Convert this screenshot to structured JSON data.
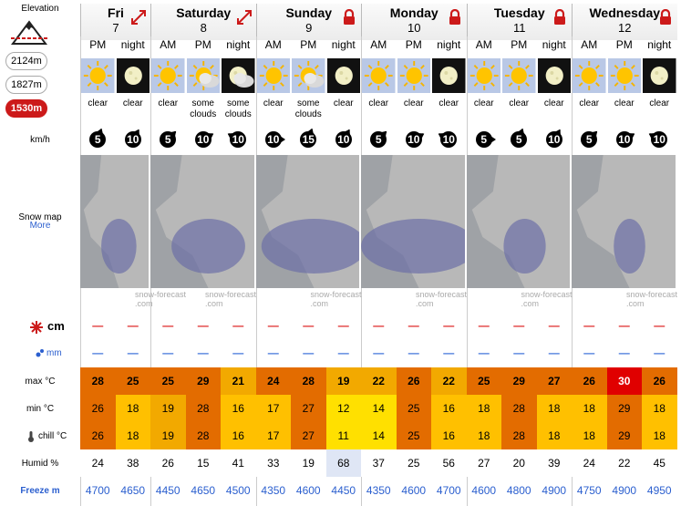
{
  "elevation": {
    "label": "Elevation",
    "options": [
      "2124m",
      "1827m",
      "1530m"
    ],
    "selected": "1530m"
  },
  "labels": {
    "wind_unit": "km/h",
    "snow_map": "Snow map",
    "more": "More",
    "snow_cm": "cm",
    "rain_mm": "mm",
    "max": "max °C",
    "min": "min °C",
    "chill": "chill °C",
    "humid": "Humid %",
    "freeze": "Freeze m"
  },
  "watermark": {
    "line1": "snow-forecast",
    "line2": ".com"
  },
  "days": [
    {
      "name": "Fri",
      "num": "7",
      "icon": "expand-arrows-icon"
    },
    {
      "name": "Saturday",
      "num": "8",
      "icon": "expand-arrows-icon"
    },
    {
      "name": "Sunday",
      "num": "9",
      "icon": "lock-icon"
    },
    {
      "name": "Monday",
      "num": "10",
      "icon": "lock-icon"
    },
    {
      "name": "Tuesday",
      "num": "11",
      "icon": "lock-icon"
    },
    {
      "name": "Wednesday",
      "num": "12",
      "icon": "lock-icon"
    }
  ],
  "periods": [
    {
      "p": "PM",
      "wx": "sun",
      "summary": "clear",
      "wind": "5",
      "max": "28",
      "min": "26",
      "chill": "26",
      "humid": "24",
      "freeze": "4700"
    },
    {
      "p": "night",
      "wx": "moon",
      "summary": "clear",
      "wind": "10",
      "max": "25",
      "min": "18",
      "chill": "18",
      "humid": "38",
      "freeze": "4650"
    },
    {
      "p": "AM",
      "wx": "sun",
      "summary": "clear",
      "wind": "5",
      "max": "25",
      "min": "19",
      "chill": "19",
      "humid": "26",
      "freeze": "4450"
    },
    {
      "p": "PM",
      "wx": "sun-cloud",
      "summary": "some clouds",
      "wind": "10",
      "max": "29",
      "min": "28",
      "chill": "28",
      "humid": "15",
      "freeze": "4650"
    },
    {
      "p": "night",
      "wx": "moon-cloud",
      "summary": "some clouds",
      "wind": "10",
      "max": "21",
      "min": "16",
      "chill": "16",
      "humid": "41",
      "freeze": "4500"
    },
    {
      "p": "AM",
      "wx": "sun",
      "summary": "clear",
      "wind": "10",
      "max": "24",
      "min": "17",
      "chill": "17",
      "humid": "33",
      "freeze": "4350"
    },
    {
      "p": "PM",
      "wx": "sun-cloud",
      "summary": "some clouds",
      "wind": "15",
      "max": "28",
      "min": "27",
      "chill": "27",
      "humid": "19",
      "freeze": "4600"
    },
    {
      "p": "night",
      "wx": "moon",
      "summary": "clear",
      "wind": "10",
      "max": "19",
      "min": "12",
      "chill": "11",
      "humid": "68",
      "freeze": "4450"
    },
    {
      "p": "AM",
      "wx": "sun",
      "summary": "clear",
      "wind": "5",
      "max": "22",
      "min": "14",
      "chill": "14",
      "humid": "37",
      "freeze": "4350"
    },
    {
      "p": "PM",
      "wx": "sun",
      "summary": "clear",
      "wind": "10",
      "max": "26",
      "min": "25",
      "chill": "25",
      "humid": "25",
      "freeze": "4600"
    },
    {
      "p": "night",
      "wx": "moon",
      "summary": "clear",
      "wind": "10",
      "max": "22",
      "min": "16",
      "chill": "16",
      "humid": "56",
      "freeze": "4700"
    },
    {
      "p": "AM",
      "wx": "sun",
      "summary": "clear",
      "wind": "5",
      "max": "25",
      "min": "18",
      "chill": "18",
      "humid": "27",
      "freeze": "4600"
    },
    {
      "p": "PM",
      "wx": "sun",
      "summary": "clear",
      "wind": "5",
      "max": "29",
      "min": "28",
      "chill": "28",
      "humid": "20",
      "freeze": "4800"
    },
    {
      "p": "night",
      "wx": "moon",
      "summary": "clear",
      "wind": "10",
      "max": "27",
      "min": "18",
      "chill": "18",
      "humid": "39",
      "freeze": "4900"
    },
    {
      "p": "AM",
      "wx": "sun",
      "summary": "clear",
      "wind": "5",
      "max": "26",
      "min": "18",
      "chill": "18",
      "humid": "24",
      "freeze": "4750"
    },
    {
      "p": "PM",
      "wx": "sun",
      "summary": "clear",
      "wind": "10",
      "max": "30",
      "min": "29",
      "chill": "29",
      "humid": "22",
      "freeze": "4900"
    },
    {
      "p": "night",
      "wx": "moon",
      "summary": "clear",
      "wind": "10",
      "max": "26",
      "min": "18",
      "chill": "18",
      "humid": "45",
      "freeze": "4950"
    }
  ],
  "colors": {
    "t30": "#e00000",
    "t24_29": "#e36c00",
    "t19_23": "#f2a900",
    "t15_18": "#ffc000",
    "t10_14": "#ffe000",
    "tlow": "#ffff66",
    "snow_dash": "#dd2222",
    "rain_dash": "#3a6fd8"
  }
}
